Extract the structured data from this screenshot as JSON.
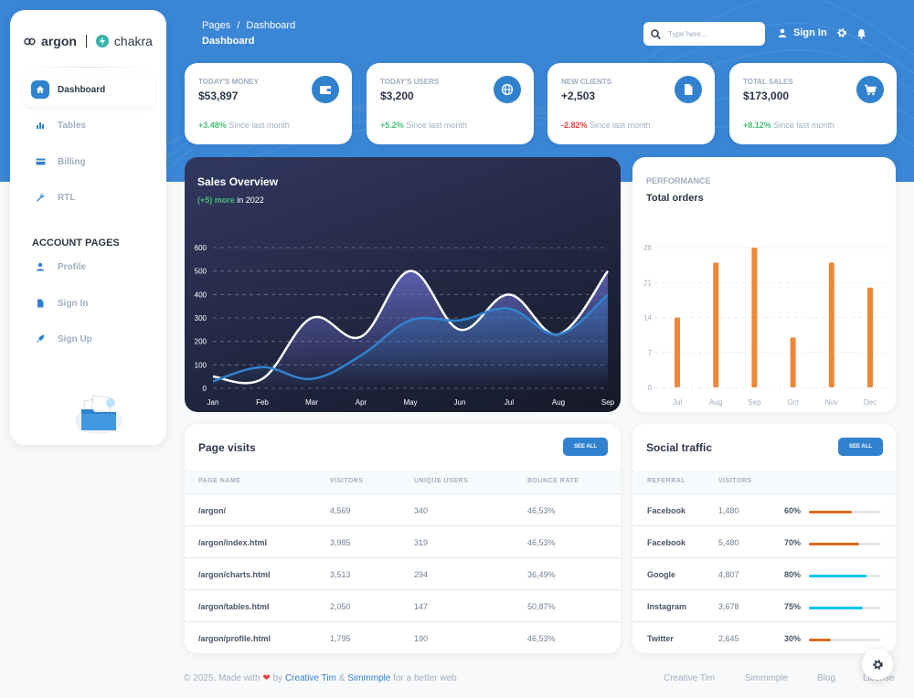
{
  "brand": {
    "left": "argon",
    "right": "chakra"
  },
  "sidebar": {
    "items": [
      {
        "label": "Dashboard",
        "icon": "home-icon"
      },
      {
        "label": "Tables",
        "icon": "stats-bars-icon"
      },
      {
        "label": "Billing",
        "icon": "credit-card-icon"
      },
      {
        "label": "RTL",
        "icon": "wrench-icon"
      }
    ],
    "account_title": "ACCOUNT PAGES",
    "account_items": [
      {
        "label": "Profile",
        "icon": "person-icon"
      },
      {
        "label": "Sign In",
        "icon": "document-icon"
      },
      {
        "label": "Sign Up",
        "icon": "rocket-icon"
      }
    ]
  },
  "header": {
    "crumb_root": "Pages",
    "crumb_sep": "/",
    "crumb_current": "Dashboard",
    "page_title": "Dashboard",
    "search_placeholder": "Type here...",
    "signin_label": "Sign In"
  },
  "stats": [
    {
      "label": "TODAY'S MONEY",
      "value": "$53,897",
      "change": "+3.48%",
      "note": "Since last month",
      "positive": true,
      "icon": "wallet-icon"
    },
    {
      "label": "TODAY'S USERS",
      "value": "$3,200",
      "change": "+5.2%",
      "note": "Since last month",
      "positive": true,
      "icon": "globe-icon"
    },
    {
      "label": "NEW CLIENTS",
      "value": "+2,503",
      "change": "-2.82%",
      "note": "Since last month",
      "positive": false,
      "icon": "document-icon"
    },
    {
      "label": "TOTAL SALES",
      "value": "$173,000",
      "change": "+8.12%",
      "note": "Since last month",
      "positive": true,
      "icon": "cart-icon"
    }
  ],
  "sales": {
    "title": "Sales Overview",
    "sub_highlight": "(+5) more",
    "sub_rest": "in 2022"
  },
  "performance": {
    "kicker": "PERFORMANCE",
    "title": "Total orders"
  },
  "page_visits": {
    "title": "Page visits",
    "button": "SEE ALL",
    "columns": [
      "PAGE NAME",
      "VISITORS",
      "UNIQUE USERS",
      "BOUNCE RATE"
    ],
    "rows": [
      [
        "/argon/",
        "4,569",
        "340",
        "46,53%"
      ],
      [
        "/argon/index.html",
        "3,985",
        "319",
        "46,53%"
      ],
      [
        "/argon/charts.html",
        "3,513",
        "294",
        "36,49%"
      ],
      [
        "/argon/tables.html",
        "2,050",
        "147",
        "50,87%"
      ],
      [
        "/argon/profile.html",
        "1,795",
        "190",
        "46,53%"
      ]
    ]
  },
  "social": {
    "title": "Social traffic",
    "button": "SEE ALL",
    "columns": [
      "REFERRAL",
      "VISITORS"
    ],
    "rows": [
      {
        "name": "Facebook",
        "visitors": "1,480",
        "pct": "60%",
        "value": 0.6,
        "color": "#dd6b20"
      },
      {
        "name": "Facebook",
        "visitors": "5,480",
        "pct": "70%",
        "value": 0.7,
        "color": "#dd6b20"
      },
      {
        "name": "Google",
        "visitors": "4,807",
        "pct": "80%",
        "value": 0.8,
        "color": "#0bc5ea"
      },
      {
        "name": "Instagram",
        "visitors": "3,678",
        "pct": "75%",
        "value": 0.75,
        "color": "#0bc5ea"
      },
      {
        "name": "Twitter",
        "visitors": "2,645",
        "pct": "30%",
        "value": 0.3,
        "color": "#dd6b20"
      }
    ]
  },
  "footer": {
    "copyright": "© 2025, Made with",
    "by": "by",
    "author1": "Creative Tim",
    "amp": "&",
    "author2": "Simmmple",
    "tail": "for a better web",
    "links": [
      "Creative Tim",
      "Simmmple",
      "Blog",
      "License"
    ]
  },
  "chart_data": [
    {
      "type": "area",
      "categories": [
        "Jan",
        "Feb",
        "Mar",
        "Apr",
        "May",
        "Jun",
        "Jul",
        "Aug",
        "Sep"
      ],
      "ylim": [
        0,
        600
      ],
      "yticks": [
        0,
        100,
        200,
        300,
        400,
        500,
        600
      ],
      "grid": true,
      "series": [
        {
          "color": "#ffffff",
          "values": [
            50,
            40,
            300,
            220,
            500,
            250,
            400,
            230,
            500
          ]
        },
        {
          "color": "#3182ce",
          "values": [
            30,
            90,
            40,
            140,
            290,
            290,
            340,
            230,
            400
          ]
        }
      ]
    },
    {
      "type": "bar",
      "categories": [
        "Jul",
        "Aug",
        "Sep",
        "Oct",
        "Nov",
        "Dec"
      ],
      "values": [
        14,
        25,
        28,
        10,
        25,
        20
      ],
      "ylim": [
        0,
        28
      ],
      "yticks": [
        0,
        7,
        14,
        21,
        28
      ],
      "grid": true,
      "color": "#ed8936"
    }
  ]
}
